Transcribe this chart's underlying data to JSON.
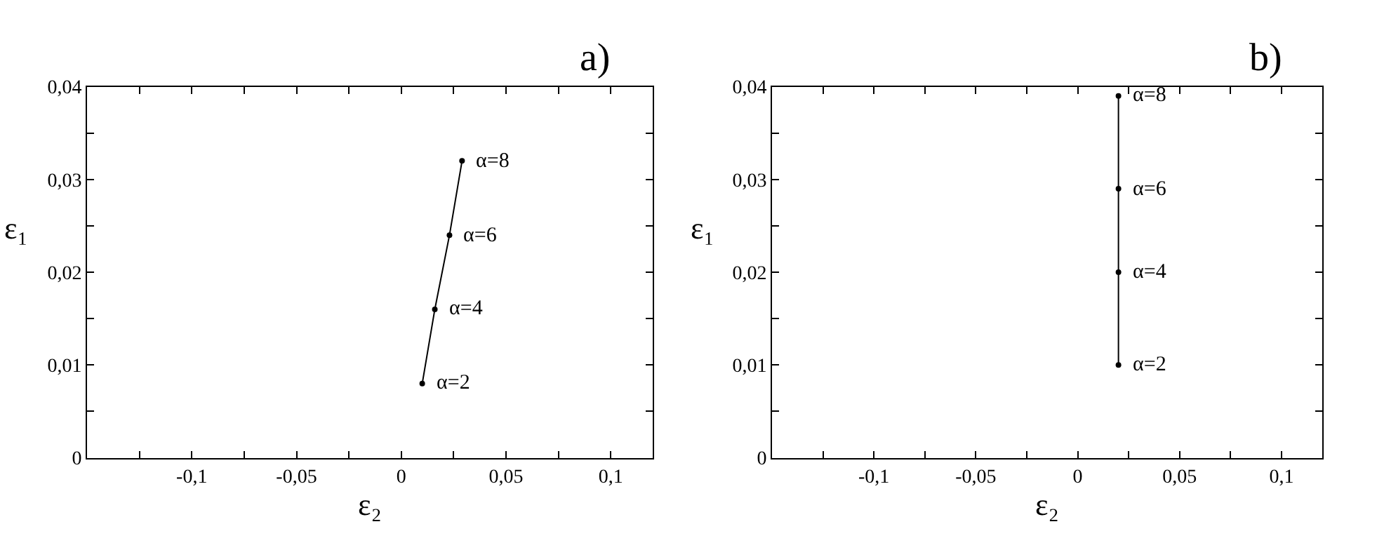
{
  "chart_data": [
    {
      "type": "line",
      "title": "a)",
      "xlabel": "ε₂",
      "ylabel": "ε₁",
      "marker": "circle",
      "line_style": "solid",
      "x": [
        0.01,
        0.016,
        0.023,
        0.029
      ],
      "series": [
        {
          "color": "#000000",
          "values": [
            0.008,
            0.016,
            0.024,
            0.032
          ]
        }
      ],
      "annotations": [
        {
          "text": "α=2",
          "x": 0.01,
          "y": 0.008
        },
        {
          "text": "α=4",
          "x": 0.016,
          "y": 0.016
        },
        {
          "text": "α=6",
          "x": 0.023,
          "y": 0.024
        },
        {
          "text": "α=8",
          "x": 0.029,
          "y": 0.032
        }
      ],
      "xlim": [
        -0.15,
        0.12
      ],
      "ylim": [
        0,
        0.04
      ],
      "xticks": [
        {
          "value": -0.125,
          "label": null
        },
        {
          "value": -0.1,
          "label": "-0,1"
        },
        {
          "value": -0.075,
          "label": null
        },
        {
          "value": -0.05,
          "label": "-0,05"
        },
        {
          "value": -0.025,
          "label": null
        },
        0,
        {
          "value": 0.025,
          "label": null
        },
        {
          "value": 0.05,
          "label": "0,05"
        },
        {
          "value": 0.075,
          "label": null
        },
        {
          "value": 0.1,
          "label": "0,1"
        }
      ],
      "yticks": [
        0,
        {
          "value": 0.005,
          "label": null
        },
        {
          "value": 0.01,
          "label": "0,01"
        },
        {
          "value": 0.015,
          "label": null
        },
        {
          "value": 0.02,
          "label": "0,02"
        },
        {
          "value": 0.025,
          "label": null
        },
        {
          "value": 0.03,
          "label": "0,03"
        },
        {
          "value": 0.035,
          "label": null
        },
        {
          "value": 0.04,
          "label": "0,04"
        }
      ]
    },
    {
      "type": "line",
      "title": "b)",
      "xlabel": "ε₂",
      "ylabel": "ε₁",
      "marker": "circle",
      "line_style": "solid",
      "x": [
        0.02,
        0.02,
        0.02,
        0.02
      ],
      "series": [
        {
          "color": "#000000",
          "values": [
            0.01,
            0.02,
            0.029,
            0.039
          ]
        }
      ],
      "annotations": [
        {
          "text": "α=2",
          "x": 0.02,
          "y": 0.01
        },
        {
          "text": "α=4",
          "x": 0.02,
          "y": 0.02
        },
        {
          "text": "α=6",
          "x": 0.02,
          "y": 0.029
        },
        {
          "text": "α=8",
          "x": 0.02,
          "y": 0.039
        }
      ],
      "xlim": [
        -0.15,
        0.12
      ],
      "ylim": [
        0,
        0.04
      ],
      "xticks": [
        {
          "value": -0.125,
          "label": null
        },
        {
          "value": -0.1,
          "label": "-0,1"
        },
        {
          "value": -0.075,
          "label": null
        },
        {
          "value": -0.05,
          "label": "-0,05"
        },
        {
          "value": -0.025,
          "label": null
        },
        0,
        {
          "value": 0.025,
          "label": null
        },
        {
          "value": 0.05,
          "label": "0,05"
        },
        {
          "value": 0.075,
          "label": null
        },
        {
          "value": 0.1,
          "label": "0,1"
        }
      ],
      "yticks": [
        0,
        {
          "value": 0.005,
          "label": null
        },
        {
          "value": 0.01,
          "label": "0,01"
        },
        {
          "value": 0.015,
          "label": null
        },
        {
          "value": 0.02,
          "label": "0,02"
        },
        {
          "value": 0.025,
          "label": null
        },
        {
          "value": 0.03,
          "label": "0,03"
        },
        {
          "value": 0.035,
          "label": null
        },
        {
          "value": 0.04,
          "label": "0,04"
        }
      ]
    }
  ]
}
